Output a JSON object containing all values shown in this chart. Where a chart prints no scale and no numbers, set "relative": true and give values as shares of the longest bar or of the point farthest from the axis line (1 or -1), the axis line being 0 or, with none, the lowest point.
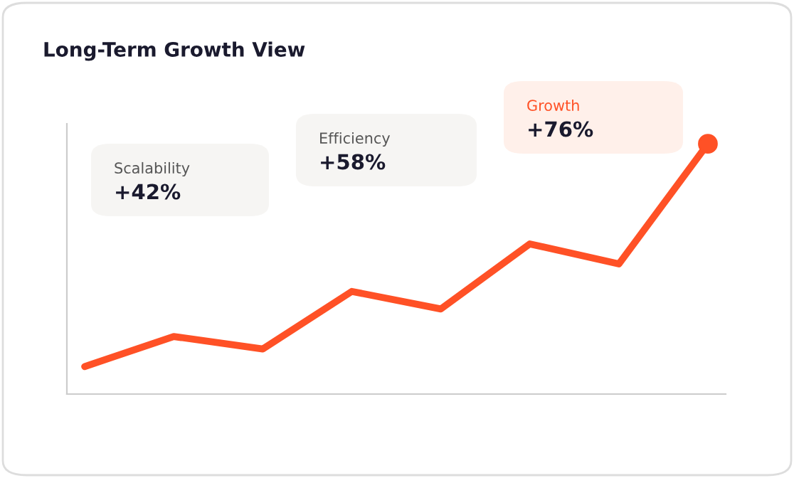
{
  "chart_data": {
    "type": "line",
    "title": "Long-Term Growth View",
    "relative": true,
    "categories": [
      null,
      null,
      null,
      null,
      null,
      null,
      null,
      null
    ],
    "series": [
      {
        "color": "#ff5126",
        "values": [
          0.11,
          0.23,
          0.18,
          0.41,
          0.34,
          0.6,
          0.52,
          1.0
        ]
      }
    ],
    "grid": false,
    "legend": false,
    "annotations": [
      "Scalability",
      "+42%",
      "Efficiency",
      "+58%",
      "Growth",
      "+76%"
    ]
  }
}
